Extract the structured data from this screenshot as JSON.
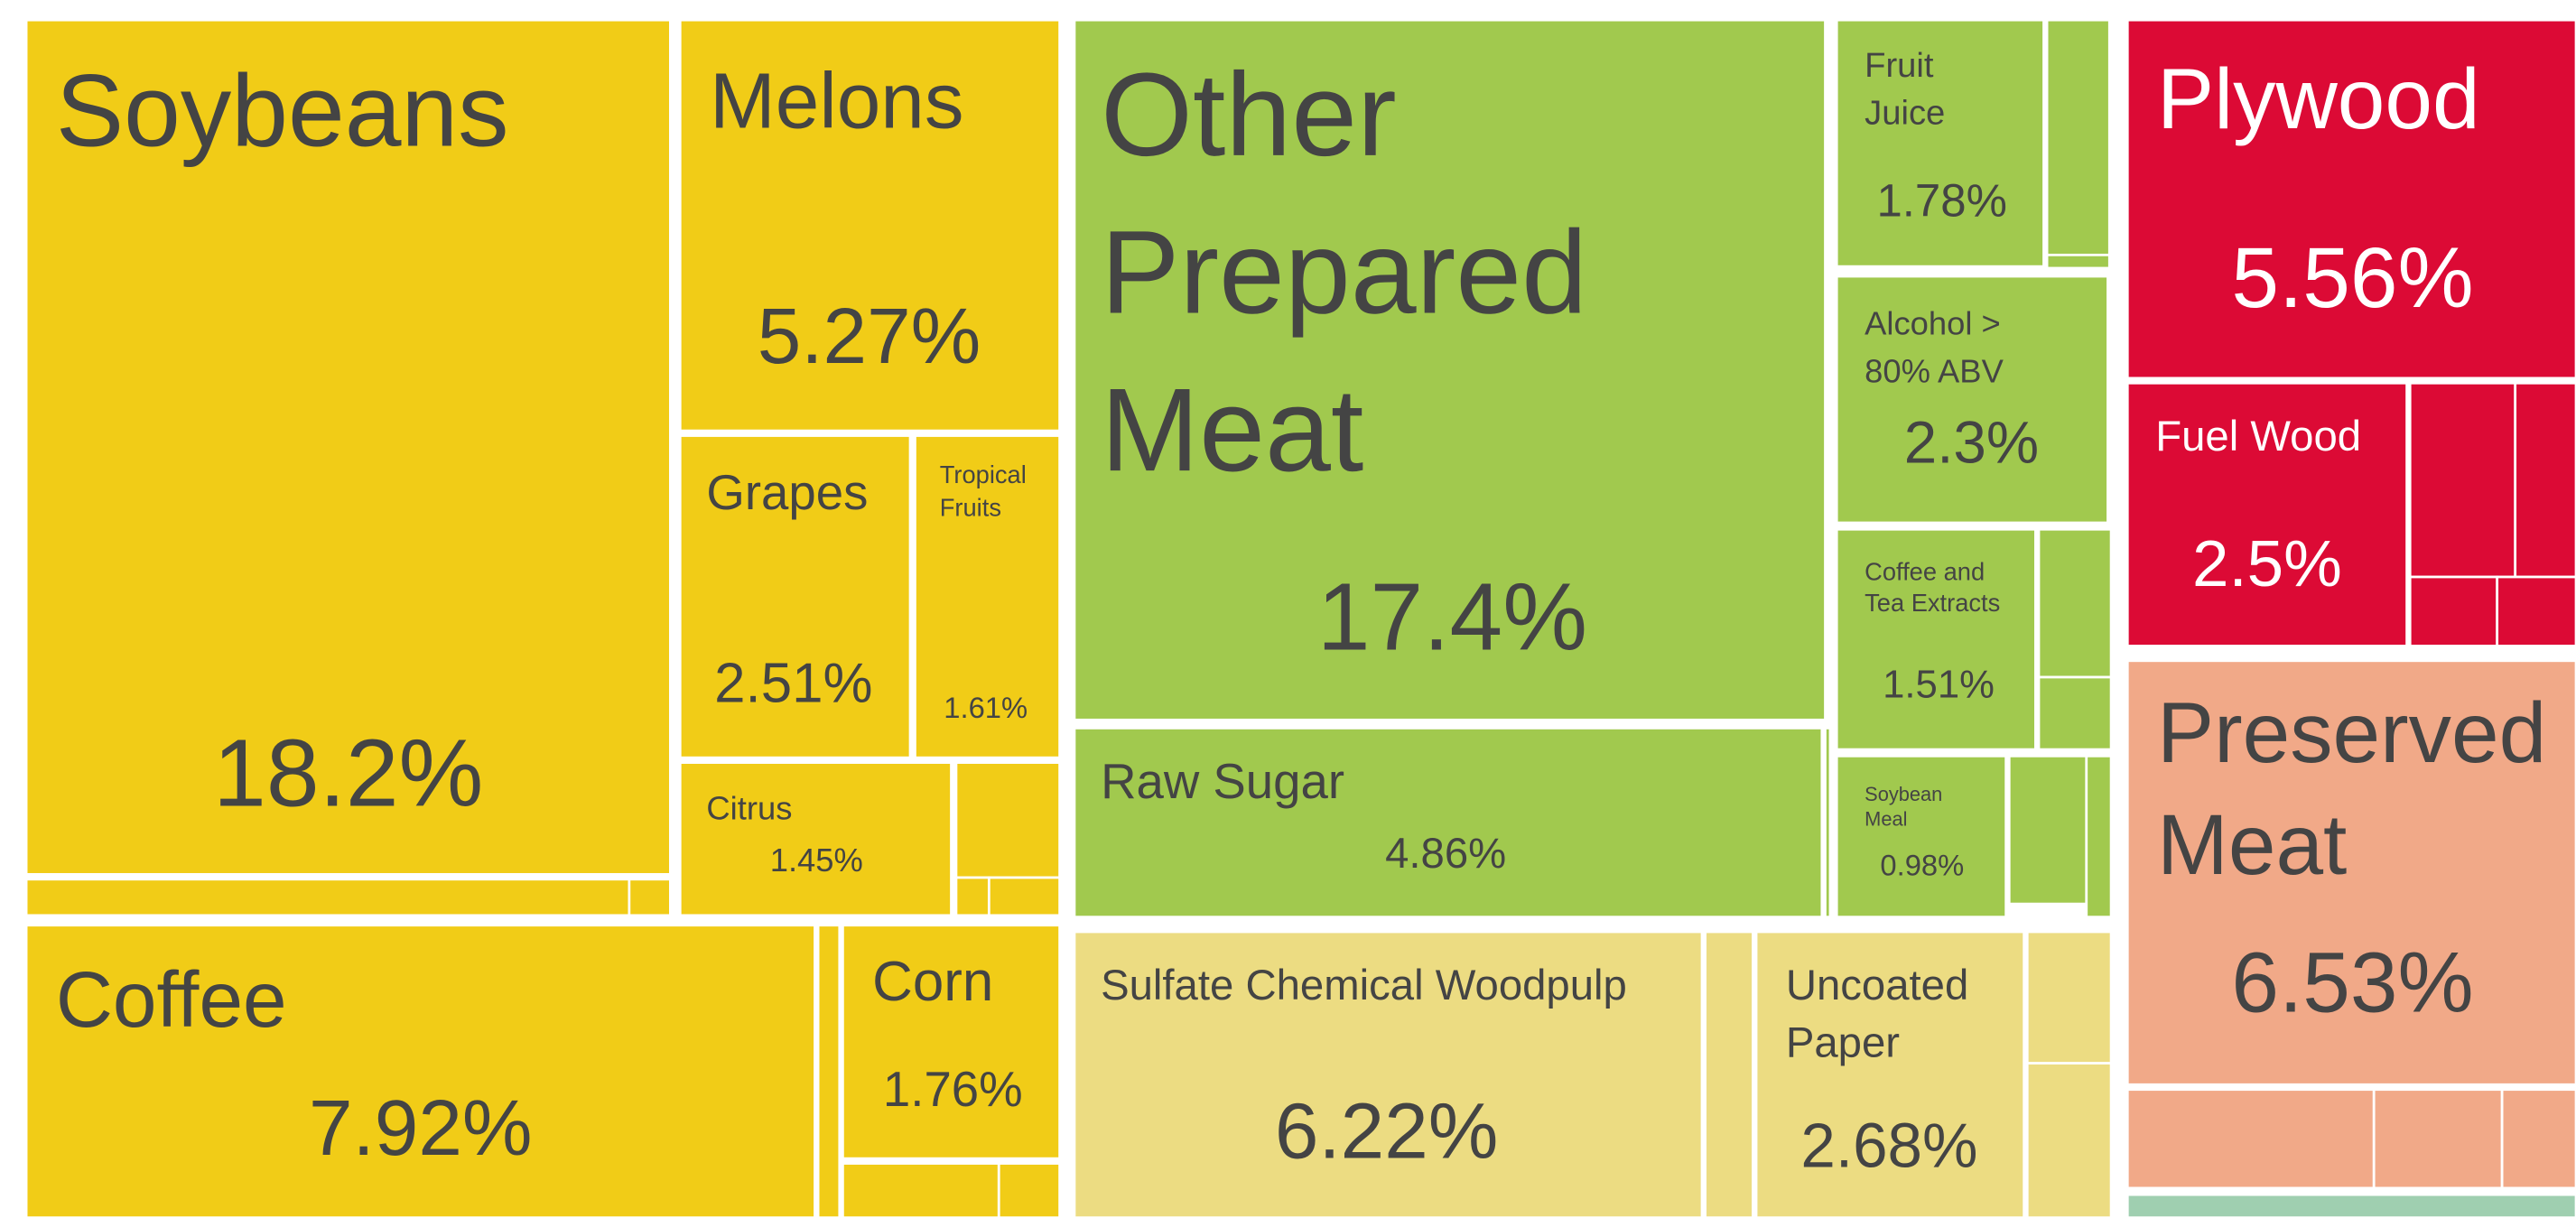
{
  "chart_data": {
    "type": "treemap",
    "items": [
      {
        "name": "Soybeans",
        "value": 18.2,
        "value_label": "18.2%",
        "color": "#f1cc17"
      },
      {
        "name": "Melons",
        "value": 5.27,
        "value_label": "5.27%",
        "color": "#f1cc17"
      },
      {
        "name": "Grapes",
        "value": 2.51,
        "value_label": "2.51%",
        "color": "#f1cc17"
      },
      {
        "name": "Tropical Fruits",
        "value": 1.61,
        "value_label": "1.61%",
        "color": "#f1cc17"
      },
      {
        "name": "Citrus",
        "value": 1.45,
        "value_label": "1.45%",
        "color": "#f1cc17"
      },
      {
        "name": "Coffee",
        "value": 7.92,
        "value_label": "7.92%",
        "color": "#f1cc17"
      },
      {
        "name": "Corn",
        "value": 1.76,
        "value_label": "1.76%",
        "color": "#f1cc17"
      },
      {
        "name": "Other Prepared Meat",
        "value": 17.4,
        "value_label": "17.4%",
        "color": "#a1c94e"
      },
      {
        "name": "Raw Sugar",
        "value": 4.86,
        "value_label": "4.86%",
        "color": "#a1c94e"
      },
      {
        "name": "Fruit Juice",
        "value": 1.78,
        "value_label": "1.78%",
        "color": "#a1c94e"
      },
      {
        "name": "Alcohol > 80% ABV",
        "value": 2.3,
        "value_label": "2.3%",
        "color": "#a1c94e"
      },
      {
        "name": "Coffee and Tea Extracts",
        "value": 1.51,
        "value_label": "1.51%",
        "color": "#a1c94e"
      },
      {
        "name": "Soybean Meal",
        "value": 0.98,
        "value_label": "0.98%",
        "color": "#a1c94e"
      },
      {
        "name": "Sulfate Chemical Woodpulp",
        "value": 6.22,
        "value_label": "6.22%",
        "color": "#ecdc82"
      },
      {
        "name": "Uncoated Paper",
        "value": 2.68,
        "value_label": "2.68%",
        "color": "#ecdc82"
      },
      {
        "name": "Plywood",
        "value": 5.56,
        "value_label": "5.56%",
        "color": "#dc0a35"
      },
      {
        "name": "Fuel Wood",
        "value": 2.5,
        "value_label": "2.5%",
        "color": "#dc0a35"
      },
      {
        "name": "Preserved Meat",
        "value": 6.53,
        "value_label": "6.53%",
        "color": "#f1a988"
      }
    ]
  }
}
